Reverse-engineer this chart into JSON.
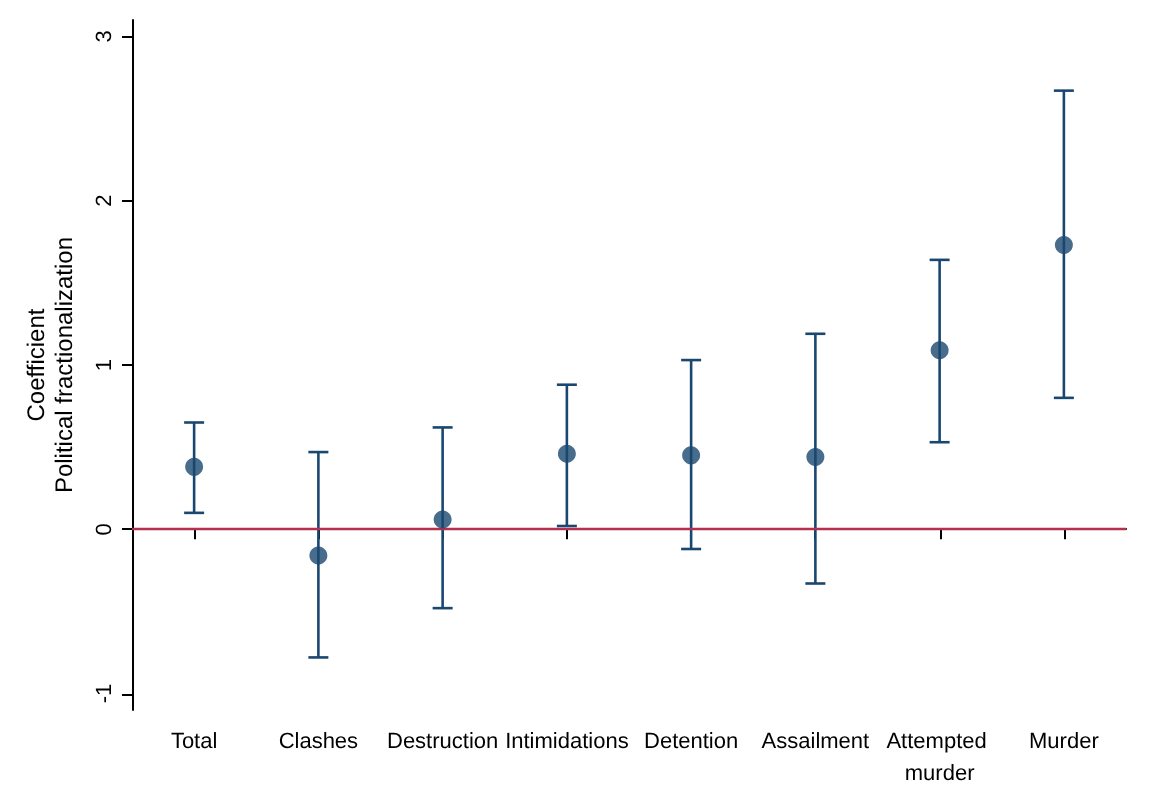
{
  "chart_data": {
    "type": "scatter",
    "ylabel": "Coefficient\nPolitical fractionalization",
    "categories": [
      "Total",
      "Clashes",
      "Destruction",
      "Intimidations",
      "Detention",
      "Assailment",
      "Attempted murder",
      "Murder"
    ],
    "series": [
      {
        "color": "#1a476f",
        "values": [
          0.38,
          -0.16,
          0.06,
          0.46,
          0.45,
          0.44,
          1.09,
          1.73
        ],
        "errors": [
          [
            0.1,
            0.65
          ],
          [
            -0.78,
            0.47
          ],
          [
            -0.48,
            0.62
          ],
          [
            0.02,
            0.88
          ],
          [
            -0.12,
            1.03
          ],
          [
            -0.33,
            1.19
          ],
          [
            0.53,
            1.64
          ],
          [
            0.8,
            2.67
          ]
        ]
      }
    ],
    "ylim": [
      -1.1,
      3.1
    ],
    "yticks": [
      -1,
      0,
      1,
      2,
      3
    ],
    "ref_lines": [
      {
        "axis": "y",
        "value": 0,
        "color": "#b5304f",
        "line_style": "solid"
      }
    ],
    "grid": false,
    "marker": "circle"
  }
}
